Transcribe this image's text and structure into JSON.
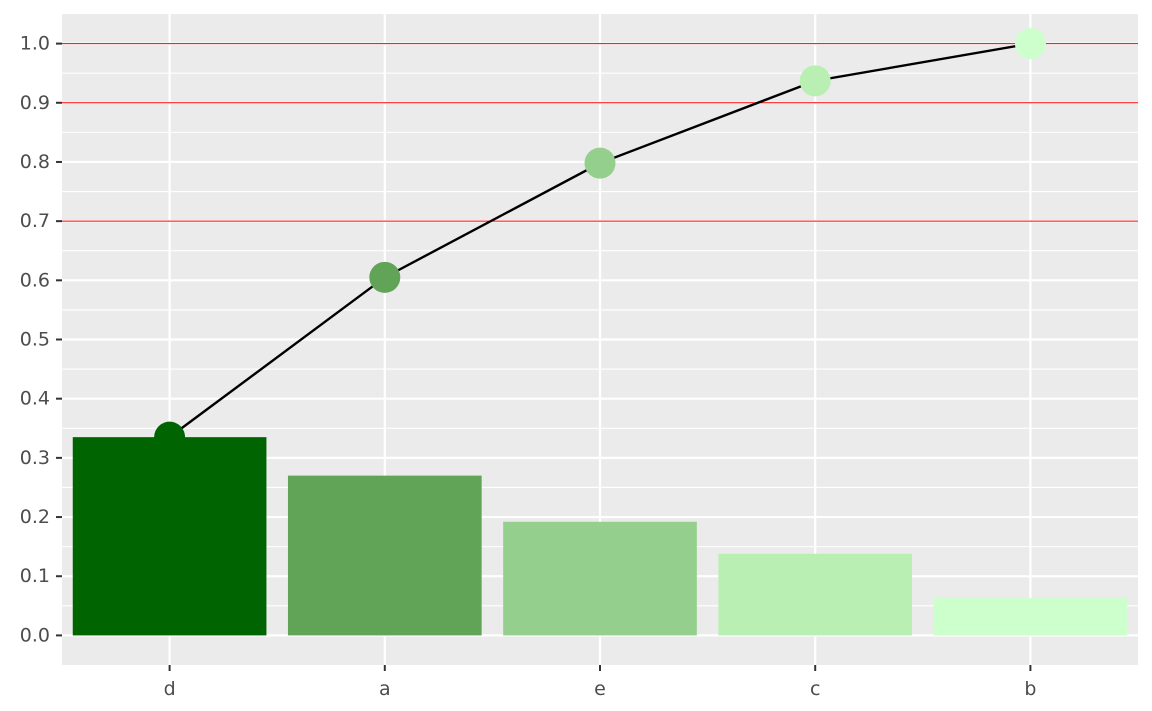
{
  "chart_data": {
    "type": "bar",
    "categories": [
      "d",
      "a",
      "e",
      "c",
      "b"
    ],
    "values": [
      0.335,
      0.27,
      0.192,
      0.138,
      0.063
    ],
    "cumulative": [
      0.335,
      0.605,
      0.798,
      0.937,
      1.0
    ],
    "colors": [
      "#006400",
      "#61a457",
      "#94cf8d",
      "#baefb3",
      "#ccffcc"
    ],
    "ylim": [
      -0.05,
      1.05
    ],
    "yticks": [
      0.0,
      0.1,
      0.2,
      0.3,
      0.4,
      0.5,
      0.6,
      0.7,
      0.8,
      0.9,
      1.0
    ],
    "ytick_labels": [
      "0.0",
      "0.1",
      "0.2",
      "0.3",
      "0.4",
      "0.5",
      "0.6",
      "0.7",
      "0.8",
      "0.9",
      "1.0"
    ],
    "reference_lines": [
      0.7,
      0.9,
      1.0
    ],
    "reference_line_color": "#ff0000",
    "line_color": "#000000",
    "panel_background": "#ebebeb",
    "grid_color": "#ffffff",
    "grid": true,
    "title": "",
    "xlabel": "",
    "ylabel": ""
  }
}
